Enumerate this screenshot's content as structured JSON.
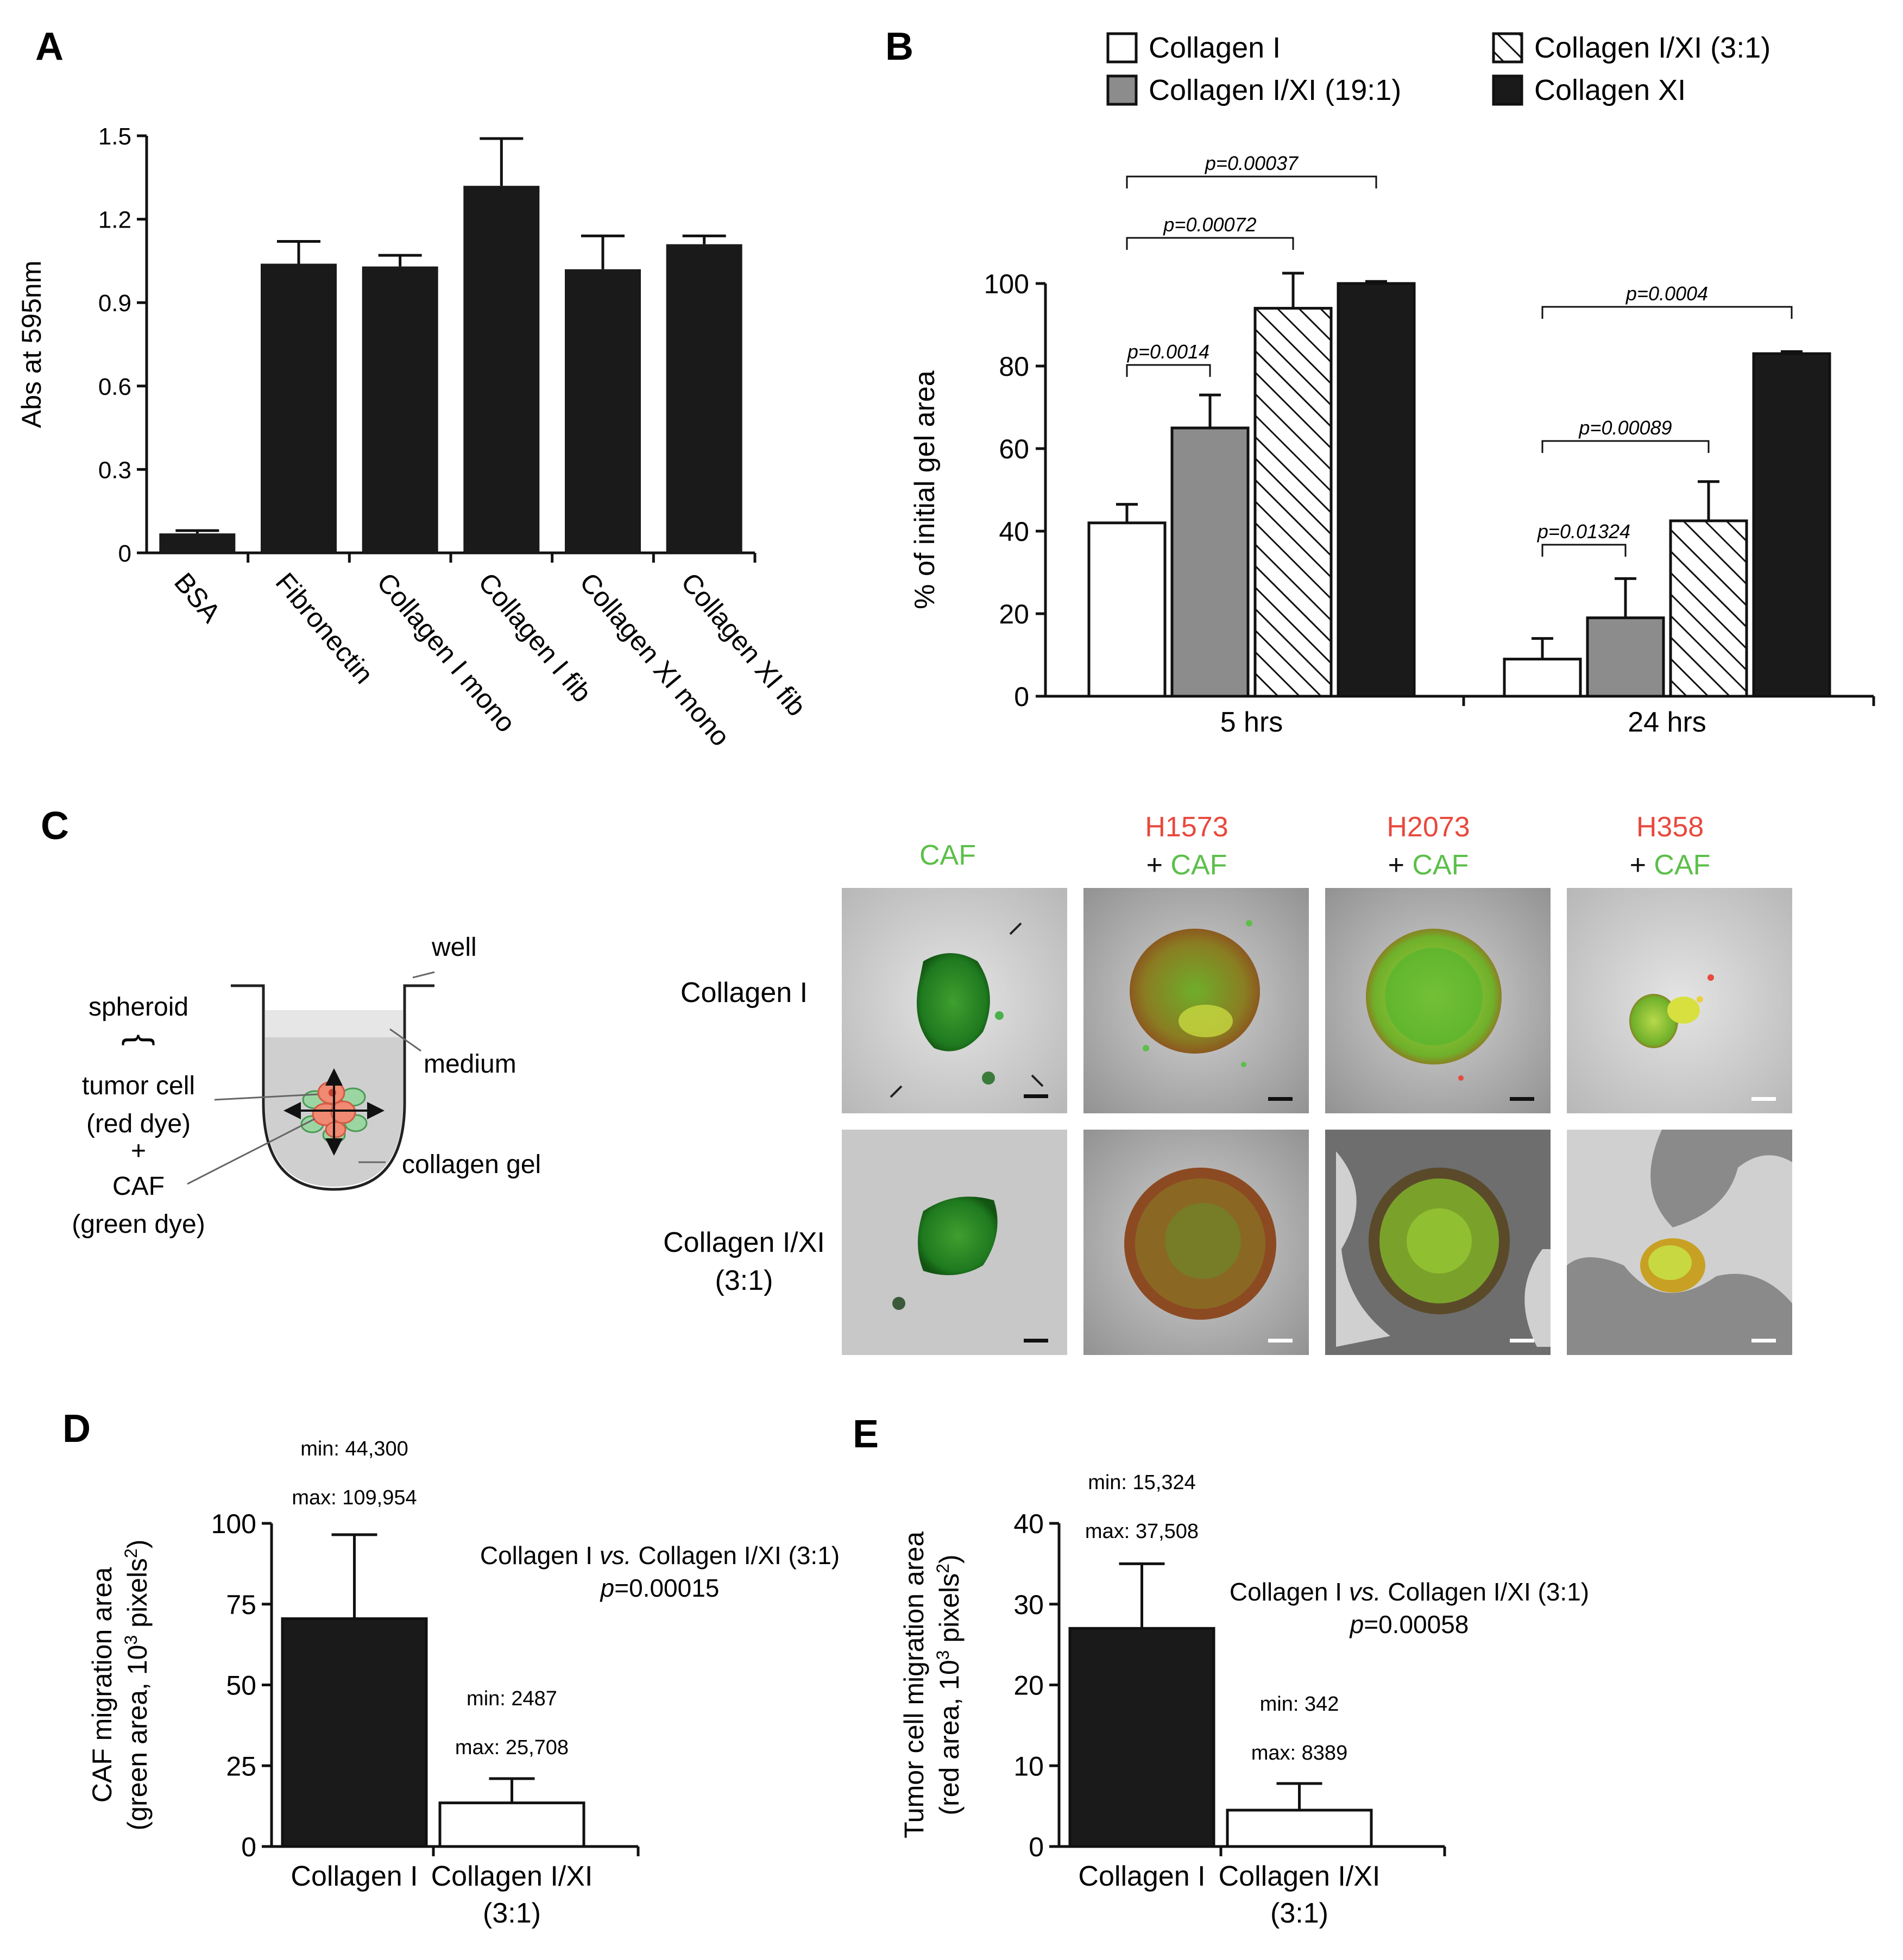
{
  "panels": {
    "A": "A",
    "B": "B",
    "C": "C",
    "D": "D",
    "E": "E"
  },
  "chart_data": [
    {
      "id": "A",
      "type": "bar",
      "ylabel": "Abs at 595nm",
      "ylim": [
        0,
        1.5
      ],
      "yticks": [
        0,
        0.3,
        0.6,
        0.9,
        1.2,
        1.5
      ],
      "ytick_labels": [
        "0",
        "0.3",
        "0.6",
        "0.9",
        "1.2",
        "1.5"
      ],
      "categories": [
        "BSA",
        "Fibronectin",
        "Collagen I mono",
        "Collagen I fib",
        "Collagen XI mono",
        "Collagen XI fib"
      ],
      "values": [
        0.07,
        1.04,
        1.03,
        1.32,
        1.02,
        1.11
      ],
      "errors": [
        0.01,
        0.08,
        0.04,
        0.17,
        0.12,
        0.03
      ],
      "color": "#1a1a1a"
    },
    {
      "id": "B",
      "type": "bar",
      "ylabel": "% of initial gel area",
      "ylim": [
        0,
        100
      ],
      "yticks": [
        0,
        20,
        40,
        60,
        80,
        100
      ],
      "ytick_labels": [
        "0",
        "20",
        "40",
        "60",
        "80",
        "100"
      ],
      "categories": [
        "5 hrs",
        "24 hrs"
      ],
      "series": [
        {
          "name": "Collagen I",
          "fill": "white",
          "values": [
            42,
            9
          ],
          "errors": [
            4.5,
            5
          ]
        },
        {
          "name": "Collagen I/XI (19:1)",
          "fill": "gray",
          "values": [
            65,
            19
          ],
          "errors": [
            8,
            9.5
          ]
        },
        {
          "name": "Collagen I/XI (3:1)",
          "fill": "hatch",
          "values": [
            94,
            42.5
          ],
          "errors": [
            8.5,
            9.5
          ]
        },
        {
          "name": "Collagen XI",
          "fill": "black",
          "values": [
            100,
            83
          ],
          "errors": [
            0.5,
            0.5
          ]
        }
      ],
      "legend_position": "top",
      "annotations": [
        {
          "label": "p=0.00037",
          "group": 0,
          "from": 0,
          "to": 3
        },
        {
          "label": "p=0.00072",
          "group": 0,
          "from": 0,
          "to": 2
        },
        {
          "label": "p=0.0014",
          "group": 0,
          "from": 0,
          "to": 1
        },
        {
          "label": "p=0.0004",
          "group": 1,
          "from": 0,
          "to": 3
        },
        {
          "label": "p=0.00089",
          "group": 1,
          "from": 0,
          "to": 2
        },
        {
          "label": "p=0.01324",
          "group": 1,
          "from": 0,
          "to": 1
        }
      ]
    },
    {
      "id": "D",
      "type": "bar",
      "ylabel_line1": "CAF migration area",
      "ylabel_line2_pre": "(green area, 10",
      "ylabel_line2_sup1": "3",
      "ylabel_line2_mid": " pixels",
      "ylabel_line2_sup2": "2",
      "ylabel_line2_post": ")",
      "ylim": [
        0,
        100
      ],
      "yticks": [
        0,
        25,
        50,
        75,
        100
      ],
      "ytick_labels": [
        "0",
        "25",
        "50",
        "75",
        "100"
      ],
      "categories": [
        "Collagen I",
        "Collagen I/XI"
      ],
      "category_sublabels": [
        "",
        "(3:1)"
      ],
      "values": [
        70.5,
        13.5
      ],
      "errors": [
        26,
        7.5
      ],
      "fills": [
        "#1a1a1a",
        "#ffffff"
      ],
      "minmax": [
        {
          "min": "min: 44,300",
          "max": "max: 109,954"
        },
        {
          "min": "min: 2487",
          "max": "max: 25,708"
        }
      ],
      "comparison_pre": "Collagen I ",
      "comparison_vs": "vs.",
      "comparison_post": " Collagen I/XI (3:1)",
      "p_label": "p",
      "p_value": "=0.00015"
    },
    {
      "id": "E",
      "type": "bar",
      "ylabel_line1": "Tumor cell migration area",
      "ylabel_line2_pre": "(red area, 10",
      "ylabel_line2_sup1": "3",
      "ylabel_line2_mid": " pixels",
      "ylabel_line2_sup2": "2",
      "ylabel_line2_post": ")",
      "ylim": [
        0,
        40
      ],
      "yticks": [
        0,
        10,
        20,
        30,
        40
      ],
      "ytick_labels": [
        "0",
        "10",
        "20",
        "30",
        "40"
      ],
      "categories": [
        "Collagen I",
        "Collagen I/XI"
      ],
      "category_sublabels": [
        "",
        "(3:1)"
      ],
      "values": [
        27,
        4.5
      ],
      "errors": [
        8,
        3.3
      ],
      "fills": [
        "#1a1a1a",
        "#ffffff"
      ],
      "minmax": [
        {
          "min": "min: 15,324",
          "max": "max: 37,508"
        },
        {
          "min": "min: 342",
          "max": "max: 8389"
        }
      ],
      "comparison_pre": "Collagen I ",
      "comparison_vs": "vs.",
      "comparison_post": " Collagen I/XI (3:1)",
      "p_label": "p",
      "p_value": "=0.00058"
    }
  ],
  "schematic": {
    "well": "well",
    "spheroid": "spheroid",
    "brace": "{",
    "medium": "medium",
    "tumor_cell": "tumor cell",
    "red_dye": "(red dye)",
    "plus": "+",
    "caf": "CAF",
    "green_dye": "(green dye)",
    "collagen_gel": "collagen gel"
  },
  "micro": {
    "col_headers": [
      {
        "line1": "",
        "line2_plus": "",
        "line2": "CAF"
      },
      {
        "line1": "H1573",
        "line2_plus": "+ ",
        "line2": "CAF"
      },
      {
        "line1": "H2073",
        "line2_plus": "+ ",
        "line2": "CAF"
      },
      {
        "line1": "H358",
        "line2_plus": "+ ",
        "line2": "CAF"
      }
    ],
    "row_labels": [
      {
        "line1": "Collagen I",
        "line2": ""
      },
      {
        "line1": "Collagen I/XI",
        "line2": "(3:1)"
      }
    ],
    "colors": {
      "tumor": "#e8493d",
      "caf": "#5cbf4a"
    }
  }
}
